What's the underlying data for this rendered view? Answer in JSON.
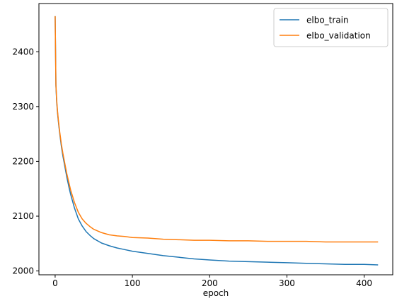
{
  "chart_data": {
    "type": "line",
    "title": "",
    "xlabel": "epoch",
    "ylabel": "",
    "xlim": [
      -21,
      437
    ],
    "ylim": [
      1993,
      2488
    ],
    "xticks": [
      0,
      100,
      200,
      300,
      400
    ],
    "yticks": [
      2000,
      2100,
      2200,
      2300,
      2400
    ],
    "grid": false,
    "legend_position": "top-right",
    "series": [
      {
        "name": "elbo_train",
        "color": "#1f77b4",
        "x": [
          0,
          1,
          2,
          3,
          4,
          5,
          6,
          8,
          10,
          12,
          15,
          18,
          20,
          25,
          30,
          35,
          40,
          45,
          50,
          60,
          70,
          80,
          90,
          100,
          120,
          140,
          160,
          180,
          200,
          225,
          250,
          275,
          300,
          325,
          350,
          375,
          400,
          418
        ],
        "values": [
          2465,
          2338,
          2308,
          2290,
          2275,
          2262,
          2250,
          2228,
          2210,
          2195,
          2172,
          2152,
          2140,
          2115,
          2095,
          2082,
          2072,
          2065,
          2059,
          2051,
          2046,
          2042,
          2039,
          2036,
          2032,
          2028,
          2025,
          2022,
          2020,
          2018,
          2017,
          2016,
          2015,
          2014,
          2013,
          2012,
          2012,
          2011
        ]
      },
      {
        "name": "elbo_validation",
        "color": "#ff7f0e",
        "x": [
          0,
          1,
          2,
          3,
          4,
          5,
          6,
          8,
          10,
          12,
          15,
          18,
          20,
          25,
          30,
          35,
          40,
          45,
          50,
          60,
          70,
          80,
          90,
          100,
          120,
          140,
          160,
          180,
          200,
          225,
          250,
          275,
          300,
          325,
          350,
          375,
          400,
          418
        ],
        "values": [
          2465,
          2340,
          2312,
          2293,
          2278,
          2265,
          2253,
          2232,
          2215,
          2200,
          2178,
          2160,
          2148,
          2125,
          2107,
          2095,
          2087,
          2081,
          2076,
          2070,
          2066,
          2064,
          2063,
          2061,
          2060,
          2058,
          2057,
          2056,
          2056,
          2055,
          2055,
          2054,
          2054,
          2054,
          2053,
          2053,
          2053,
          2053
        ]
      }
    ]
  }
}
